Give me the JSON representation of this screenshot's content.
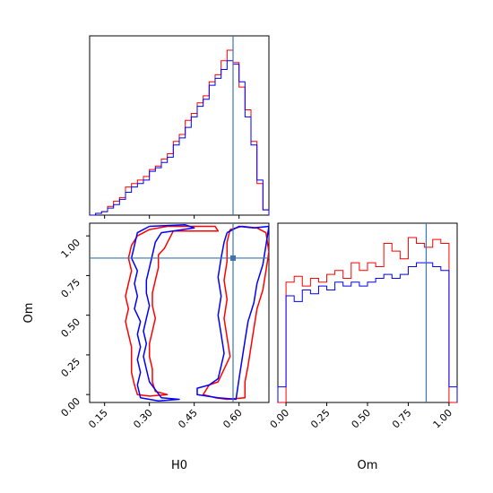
{
  "chart_data": {
    "type": "corner",
    "parameters": [
      "H0",
      "Om"
    ],
    "truths": {
      "H0": 0.58,
      "Om": 0.86
    },
    "colors": {
      "series_a": "#ff0000",
      "series_b": "#0000ff",
      "truth": "#3b75af"
    },
    "grid": false,
    "legend": "none",
    "panels": [
      {
        "id": "h0-hist",
        "type": "step-histogram",
        "xlim": [
          0.1,
          0.7
        ],
        "x_ticks_shown": false,
        "bin_edges": [
          0.1,
          0.12,
          0.14,
          0.16,
          0.18,
          0.2,
          0.22,
          0.24,
          0.26,
          0.28,
          0.3,
          0.32,
          0.34,
          0.36,
          0.38,
          0.4,
          0.42,
          0.44,
          0.46,
          0.48,
          0.5,
          0.52,
          0.54,
          0.56,
          0.58,
          0.6,
          0.62,
          0.64,
          0.66,
          0.68,
          0.7
        ],
        "series": [
          {
            "color": "red",
            "values": [
              0,
              0.01,
              0.02,
              0.05,
              0.08,
              0.1,
              0.16,
              0.18,
              0.2,
              0.22,
              0.26,
              0.28,
              0.32,
              0.35,
              0.42,
              0.46,
              0.54,
              0.58,
              0.64,
              0.68,
              0.76,
              0.8,
              0.88,
              0.94,
              0.87,
              0.73,
              0.6,
              0.42,
              0.18,
              0.03
            ]
          },
          {
            "color": "blue",
            "values": [
              0,
              0.01,
              0.02,
              0.04,
              0.06,
              0.09,
              0.13,
              0.16,
              0.18,
              0.2,
              0.25,
              0.27,
              0.3,
              0.33,
              0.4,
              0.44,
              0.5,
              0.56,
              0.62,
              0.66,
              0.74,
              0.78,
              0.83,
              0.88,
              0.86,
              0.76,
              0.56,
              0.4,
              0.2,
              0.03
            ]
          }
        ]
      },
      {
        "id": "h0-om-contour",
        "type": "contour",
        "xlim": [
          0.1,
          0.7
        ],
        "ylim": [
          -0.05,
          1.08
        ],
        "x_ticks": [
          0.15,
          0.3,
          0.45,
          0.6
        ],
        "x_tick_labels": [
          "0.15",
          "0.30",
          "0.45",
          "0.60"
        ],
        "y_ticks": [
          0.0,
          0.25,
          0.5,
          0.75,
          1.0
        ],
        "y_tick_labels": [
          "0.00",
          "0.25",
          "0.50",
          "0.75",
          "1.00"
        ],
        "xlabel": "H0",
        "ylabel": "Om",
        "contours": [
          {
            "color": "red",
            "points": [
              [
                0.36,
                1.06
              ],
              [
                0.52,
                1.06
              ],
              [
                0.53,
                1.03
              ],
              [
                0.38,
                1.03
              ],
              [
                0.35,
                0.92
              ],
              [
                0.33,
                0.88
              ],
              [
                0.33,
                0.8
              ],
              [
                0.32,
                0.72
              ],
              [
                0.31,
                0.64
              ],
              [
                0.31,
                0.56
              ],
              [
                0.32,
                0.48
              ],
              [
                0.31,
                0.4
              ],
              [
                0.3,
                0.32
              ],
              [
                0.3,
                0.24
              ],
              [
                0.31,
                0.16
              ],
              [
                0.31,
                0.08
              ],
              [
                0.32,
                0.02
              ],
              [
                0.36,
                0.0
              ],
              [
                0.3,
                -0.01
              ],
              [
                0.26,
                0.0
              ],
              [
                0.25,
                0.06
              ],
              [
                0.24,
                0.14
              ],
              [
                0.24,
                0.22
              ],
              [
                0.24,
                0.3
              ],
              [
                0.23,
                0.38
              ],
              [
                0.22,
                0.46
              ],
              [
                0.23,
                0.54
              ],
              [
                0.22,
                0.62
              ],
              [
                0.23,
                0.7
              ],
              [
                0.24,
                0.78
              ],
              [
                0.23,
                0.86
              ],
              [
                0.24,
                0.94
              ],
              [
                0.26,
                1.0
              ],
              [
                0.3,
                1.04
              ],
              [
                0.36,
                1.06
              ]
            ]
          },
          {
            "color": "red",
            "points": [
              [
                0.57,
                1.04
              ],
              [
                0.61,
                1.06
              ],
              [
                0.66,
                1.05
              ],
              [
                0.69,
                1.02
              ],
              [
                0.7,
                0.9
              ],
              [
                0.69,
                0.78
              ],
              [
                0.68,
                0.66
              ],
              [
                0.66,
                0.54
              ],
              [
                0.65,
                0.42
              ],
              [
                0.64,
                0.3
              ],
              [
                0.63,
                0.18
              ],
              [
                0.62,
                0.08
              ],
              [
                0.62,
                -0.02
              ],
              [
                0.56,
                -0.03
              ],
              [
                0.52,
                -0.02
              ],
              [
                0.48,
                0.0
              ],
              [
                0.5,
                0.06
              ],
              [
                0.53,
                0.08
              ],
              [
                0.55,
                0.16
              ],
              [
                0.57,
                0.24
              ],
              [
                0.56,
                0.36
              ],
              [
                0.55,
                0.48
              ],
              [
                0.56,
                0.6
              ],
              [
                0.55,
                0.72
              ],
              [
                0.56,
                0.84
              ],
              [
                0.56,
                0.96
              ],
              [
                0.57,
                1.04
              ]
            ]
          },
          {
            "color": "blue",
            "points": [
              [
                0.3,
                1.06
              ],
              [
                0.42,
                1.07
              ],
              [
                0.45,
                1.05
              ],
              [
                0.34,
                1.02
              ],
              [
                0.32,
                0.96
              ],
              [
                0.31,
                0.88
              ],
              [
                0.3,
                0.8
              ],
              [
                0.29,
                0.72
              ],
              [
                0.29,
                0.64
              ],
              [
                0.3,
                0.56
              ],
              [
                0.29,
                0.48
              ],
              [
                0.28,
                0.4
              ],
              [
                0.29,
                0.32
              ],
              [
                0.28,
                0.24
              ],
              [
                0.29,
                0.16
              ],
              [
                0.3,
                0.08
              ],
              [
                0.34,
                -0.02
              ],
              [
                0.4,
                -0.03
              ],
              [
                0.33,
                -0.04
              ],
              [
                0.27,
                -0.02
              ],
              [
                0.26,
                0.06
              ],
              [
                0.27,
                0.14
              ],
              [
                0.26,
                0.22
              ],
              [
                0.27,
                0.3
              ],
              [
                0.26,
                0.38
              ],
              [
                0.27,
                0.46
              ],
              [
                0.25,
                0.54
              ],
              [
                0.26,
                0.62
              ],
              [
                0.25,
                0.7
              ],
              [
                0.26,
                0.78
              ],
              [
                0.24,
                0.86
              ],
              [
                0.25,
                0.94
              ],
              [
                0.26,
                1.02
              ],
              [
                0.3,
                1.06
              ]
            ]
          },
          {
            "color": "blue",
            "points": [
              [
                0.56,
                1.02
              ],
              [
                0.6,
                1.06
              ],
              [
                0.65,
                1.05
              ],
              [
                0.7,
                1.06
              ],
              [
                0.69,
                0.94
              ],
              [
                0.68,
                0.82
              ],
              [
                0.66,
                0.7
              ],
              [
                0.65,
                0.58
              ],
              [
                0.63,
                0.46
              ],
              [
                0.62,
                0.34
              ],
              [
                0.61,
                0.22
              ],
              [
                0.6,
                0.1
              ],
              [
                0.59,
                -0.03
              ],
              [
                0.53,
                -0.02
              ],
              [
                0.46,
                0.0
              ],
              [
                0.46,
                0.04
              ],
              [
                0.5,
                0.06
              ],
              [
                0.53,
                0.1
              ],
              [
                0.54,
                0.18
              ],
              [
                0.55,
                0.26
              ],
              [
                0.54,
                0.38
              ],
              [
                0.53,
                0.5
              ],
              [
                0.54,
                0.62
              ],
              [
                0.53,
                0.74
              ],
              [
                0.54,
                0.86
              ],
              [
                0.55,
                0.96
              ],
              [
                0.56,
                1.02
              ]
            ]
          }
        ]
      },
      {
        "id": "om-hist",
        "type": "step-histogram",
        "xlim": [
          -0.05,
          1.05
        ],
        "x_ticks": [
          0.0,
          0.25,
          0.5,
          0.75,
          1.0
        ],
        "x_tick_labels": [
          "0.00",
          "0.25",
          "0.50",
          "0.75",
          "1.00"
        ],
        "xlabel": "Om",
        "bin_edges": [
          -0.05,
          0.0,
          0.05,
          0.1,
          0.15,
          0.2,
          0.25,
          0.3,
          0.35,
          0.4,
          0.45,
          0.5,
          0.55,
          0.6,
          0.65,
          0.7,
          0.75,
          0.8,
          0.85,
          0.9,
          0.95,
          1.0,
          1.05
        ],
        "series": [
          {
            "color": "red",
            "values": [
              0,
              0.62,
              0.65,
              0.6,
              0.64,
              0.62,
              0.66,
              0.68,
              0.64,
              0.72,
              0.68,
              0.72,
              0.7,
              0.82,
              0.78,
              0.74,
              0.85,
              0.82,
              0.8,
              0.84,
              0.82,
              0
            ]
          },
          {
            "color": "blue",
            "values": [
              0.08,
              0.55,
              0.52,
              0.58,
              0.56,
              0.6,
              0.58,
              0.62,
              0.6,
              0.62,
              0.6,
              0.62,
              0.64,
              0.66,
              0.64,
              0.66,
              0.7,
              0.72,
              0.72,
              0.7,
              0.68,
              0.08
            ]
          }
        ]
      }
    ]
  }
}
